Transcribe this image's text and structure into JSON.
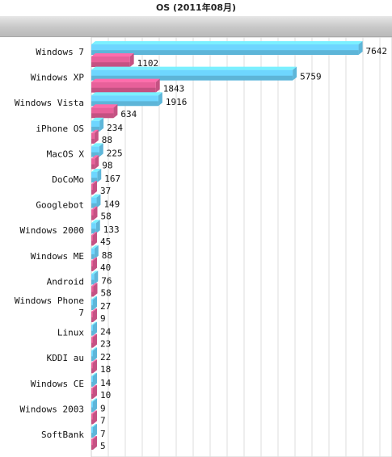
{
  "chart_data": {
    "type": "bar",
    "orientation": "horizontal",
    "title": "OS (2011年08月)",
    "categories": [
      "Windows 7",
      "Windows XP",
      "Windows Vista",
      "iPhone OS",
      "MacOS X",
      "DoCoMo",
      "Googlebot",
      "Windows 2000",
      "Windows ME",
      "Android",
      "Windows Phone 7",
      "Linux",
      "KDDI au",
      "Windows CE",
      "Windows 2003",
      "SoftBank"
    ],
    "category_label_lines": [
      [
        "Windows 7"
      ],
      [
        "Windows XP"
      ],
      [
        "Windows Vista"
      ],
      [
        "iPhone OS"
      ],
      [
        "MacOS X"
      ],
      [
        "DoCoMo"
      ],
      [
        "Googlebot"
      ],
      [
        "Windows 2000"
      ],
      [
        "Windows ME"
      ],
      [
        "Android"
      ],
      [
        "Windows Phone",
        "7"
      ],
      [
        "Linux"
      ],
      [
        "KDDI au"
      ],
      [
        "Windows CE"
      ],
      [
        "Windows 2003"
      ],
      [
        "SoftBank"
      ]
    ],
    "series": [
      {
        "values": [
          7642,
          5759,
          1916,
          234,
          225,
          167,
          149,
          133,
          88,
          76,
          27,
          24,
          22,
          14,
          9,
          7
        ],
        "color": "#6ed6ff"
      },
      {
        "values": [
          1102,
          1843,
          634,
          88,
          98,
          37,
          58,
          45,
          40,
          58,
          9,
          23,
          18,
          10,
          7,
          5
        ],
        "color": "#e8609a"
      }
    ],
    "xlim": [
      0,
      8600
    ],
    "grid": true,
    "legend": "none"
  }
}
